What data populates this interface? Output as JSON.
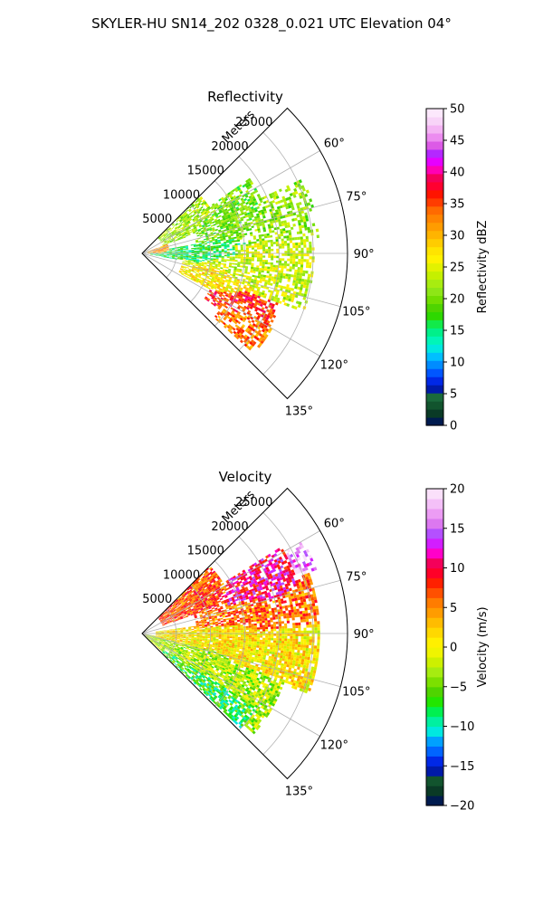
{
  "suptitle": "SKYLER-HU  SN14_202  0328_0.021 UTC Elevation 04°",
  "chart_data": [
    {
      "type": "heatmap",
      "projection": "polar-sector",
      "title": "Reflectivity",
      "range_label": "Meters",
      "range_ticks": [
        5000,
        10000,
        15000,
        20000,
        25000
      ],
      "range_tick_labels": [
        "5000",
        "10000",
        "15000",
        "20000",
        "25000"
      ],
      "azimuth_ticks": [
        60,
        75,
        90,
        105,
        120,
        135
      ],
      "azimuth_tick_labels": [
        "60°",
        "75°",
        "90°",
        "105°",
        "120°",
        "135°"
      ],
      "azimuth_range": [
        45,
        135
      ],
      "range_max": 30000,
      "grid": true,
      "colorbar": {
        "label": "Reflectivity dBZ",
        "min": 0,
        "max": 50,
        "ticks": [
          0,
          5,
          10,
          15,
          20,
          25,
          30,
          35,
          40,
          45,
          50
        ],
        "tick_labels": [
          "0",
          "5",
          "10",
          "15",
          "20",
          "25",
          "30",
          "35",
          "40",
          "45",
          "50"
        ],
        "colors": [
          "#001b4f",
          "#0a3a26",
          "#12542e",
          "#1a6a3c",
          "#001aa8",
          "#0028e6",
          "#0056ff",
          "#008cff",
          "#00bfff",
          "#00e8e0",
          "#00f5b8",
          "#00f08a",
          "#12ea4a",
          "#2ed800",
          "#4fd400",
          "#72de00",
          "#8ee616",
          "#a8ec10",
          "#c5f000",
          "#e2f200",
          "#fff200",
          "#ffe400",
          "#ffcc00",
          "#ffb400",
          "#ff9c00",
          "#ff8400",
          "#ff6a00",
          "#ff3c00",
          "#ff1400",
          "#ff0030",
          "#f4005a",
          "#ff00b4",
          "#e600ff",
          "#b428ff",
          "#dc5ae6",
          "#ec8cf0",
          "#f4b4f4",
          "#f8d4f8",
          "#fce8fc"
        ]
      },
      "echo_regions": [
        {
          "az": [
            45,
            70
          ],
          "r": [
            3000,
            12000
          ],
          "value": 22,
          "density": 0.55
        },
        {
          "az": [
            55,
            80
          ],
          "r": [
            8000,
            19000
          ],
          "value": 20,
          "density": 0.55
        },
        {
          "az": [
            65,
            85
          ],
          "r": [
            14000,
            26000
          ],
          "value": 21,
          "density": 0.4
        },
        {
          "az": [
            80,
            100
          ],
          "r": [
            1000,
            15000
          ],
          "value": 16,
          "density": 0.55
        },
        {
          "az": [
            85,
            110
          ],
          "r": [
            6000,
            25000
          ],
          "value": 24,
          "density": 0.5
        },
        {
          "az": [
            98,
            118
          ],
          "r": [
            6000,
            18000
          ],
          "value": 27,
          "density": 0.6
        },
        {
          "az": [
            108,
            126
          ],
          "r": [
            11000,
            21000
          ],
          "value": 36,
          "density": 0.55
        },
        {
          "az": [
            115,
            132
          ],
          "r": [
            14000,
            22000
          ],
          "value": 33,
          "density": 0.5
        },
        {
          "az": [
            70,
            90
          ],
          "r": [
            500,
            4000
          ],
          "value": 31,
          "density": 0.6
        }
      ]
    },
    {
      "type": "heatmap",
      "projection": "polar-sector",
      "title": "Velocity",
      "range_label": "Meters",
      "range_ticks": [
        5000,
        10000,
        15000,
        20000,
        25000
      ],
      "range_tick_labels": [
        "5000",
        "10000",
        "15000",
        "20000",
        "25000"
      ],
      "azimuth_ticks": [
        60,
        75,
        90,
        105,
        120,
        135
      ],
      "azimuth_tick_labels": [
        "60°",
        "75°",
        "90°",
        "105°",
        "120°",
        "135°"
      ],
      "azimuth_range": [
        45,
        135
      ],
      "range_max": 30000,
      "grid": true,
      "colorbar": {
        "label": "Velocity (m/s)",
        "min": -20,
        "max": 20,
        "ticks": [
          -20,
          -15,
          -10,
          -5,
          0,
          5,
          10,
          15,
          20
        ],
        "tick_labels": [
          "−20",
          "−15",
          "−10",
          "−5",
          "0",
          "5",
          "10",
          "15",
          "20"
        ],
        "colors": [
          "#001b4f",
          "#0a3a26",
          "#12542e",
          "#001aa8",
          "#0028e6",
          "#0064ff",
          "#00a0ff",
          "#00e8e0",
          "#00f0a0",
          "#00f050",
          "#22e600",
          "#4fd400",
          "#7ce000",
          "#a6ec10",
          "#cdf000",
          "#f0f400",
          "#fff000",
          "#ffd800",
          "#ffbc00",
          "#ff9c00",
          "#ff7c00",
          "#ff5000",
          "#ff2000",
          "#ff0028",
          "#f4005a",
          "#ff00c8",
          "#d21eff",
          "#b450ff",
          "#dc78f0",
          "#ec9cf4",
          "#f4c0f8",
          "#fae0fa"
        ]
      },
      "echo_regions": [
        {
          "az": [
            45,
            70
          ],
          "r": [
            3000,
            14000
          ],
          "value": 7,
          "density": 0.75
        },
        {
          "az": [
            58,
            78
          ],
          "r": [
            13000,
            24000
          ],
          "value": 11,
          "density": 0.6
        },
        {
          "az": [
            70,
            90
          ],
          "r": [
            8000,
            26000
          ],
          "value": 6,
          "density": 0.6
        },
        {
          "az": [
            82,
            110
          ],
          "r": [
            2000,
            26000
          ],
          "value": 1,
          "density": 0.75
        },
        {
          "az": [
            100,
            132
          ],
          "r": [
            0,
            22000
          ],
          "value": -3,
          "density": 0.7
        },
        {
          "az": [
            118,
            134
          ],
          "r": [
            4000,
            20000
          ],
          "value": -7,
          "density": 0.6
        },
        {
          "az": [
            60,
            70
          ],
          "r": [
            24000,
            27000
          ],
          "value": 16,
          "density": 0.4
        }
      ]
    }
  ]
}
